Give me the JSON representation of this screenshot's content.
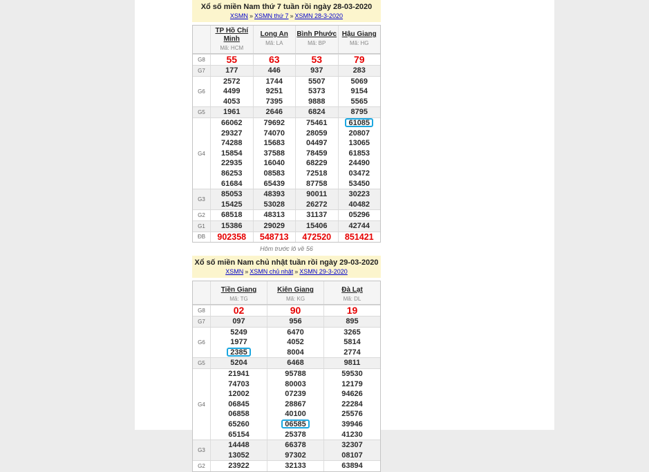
{
  "colors": {
    "page_background": "#ececec",
    "content_background": "#ffffff",
    "header_yellow": "#fcf5cd",
    "special_red": "#e60000",
    "link_blue": "#0000cc",
    "highlight_border_blue": "#1ba7e0",
    "shade_row_gray": "#f0f0f0"
  },
  "separator": "»",
  "tables": [
    {
      "title": "Xổ số miền Nam thứ 7 tuần rồi ngày 28-03-2020",
      "breadcrumb": [
        "XSMN",
        "XSMN thứ 7",
        "XSMN 28-3-2020"
      ],
      "columns": [
        {
          "name": "TP Hồ Chí Minh",
          "code": "Mã: HCM"
        },
        {
          "name": "Long An",
          "code": "Mã: LA"
        },
        {
          "name": "Bình Phước",
          "code": "Mã: BP"
        },
        {
          "name": "Hậu Giang",
          "code": "Mã: HG"
        }
      ],
      "rows": [
        {
          "label": "G8",
          "style": "g8",
          "cells": [
            [
              "55"
            ],
            [
              "63"
            ],
            [
              "53"
            ],
            [
              "79"
            ]
          ]
        },
        {
          "label": "G7",
          "cells": [
            [
              "177"
            ],
            [
              "446"
            ],
            [
              "937"
            ],
            [
              "283"
            ]
          ]
        },
        {
          "label": "G6",
          "cells": [
            [
              "2572",
              "4499",
              "4053"
            ],
            [
              "1744",
              "9251",
              "7395"
            ],
            [
              "5507",
              "5373",
              "9888"
            ],
            [
              "5069",
              "9154",
              "5565"
            ]
          ]
        },
        {
          "label": "G5",
          "cells": [
            [
              "1961"
            ],
            [
              "2646"
            ],
            [
              "6824"
            ],
            [
              "8795"
            ]
          ]
        },
        {
          "label": "G4",
          "cells": [
            [
              "66062",
              "29327",
              "74288",
              "15854",
              "22935",
              "86253",
              "61684"
            ],
            [
              "79692",
              "74070",
              "15683",
              "37588",
              "16040",
              "08583",
              "65439"
            ],
            [
              "75461",
              "28059",
              "04497",
              "78459",
              "68229",
              "72518",
              "87758"
            ],
            [
              "61085",
              "20807",
              "13065",
              "61853",
              "24490",
              "03472",
              "53450"
            ]
          ]
        },
        {
          "label": "G3",
          "cells": [
            [
              "85053",
              "15425"
            ],
            [
              "48393",
              "53028"
            ],
            [
              "90011",
              "26272"
            ],
            [
              "30223",
              "40482"
            ]
          ]
        },
        {
          "label": "G2",
          "cells": [
            [
              "68518"
            ],
            [
              "48313"
            ],
            [
              "31137"
            ],
            [
              "05296"
            ]
          ]
        },
        {
          "label": "G1",
          "cells": [
            [
              "15386"
            ],
            [
              "29029"
            ],
            [
              "15406"
            ],
            [
              "42744"
            ]
          ]
        },
        {
          "label": "ĐB",
          "style": "db",
          "cells": [
            [
              "902358"
            ],
            [
              "548713"
            ],
            [
              "472520"
            ],
            [
              "851421"
            ]
          ]
        }
      ],
      "highlights": [
        [
          4,
          3,
          0
        ]
      ],
      "note": "Hôm trước lô về 56"
    },
    {
      "title": "Xổ số miền Nam chủ nhật tuần rồi ngày 29-03-2020",
      "breadcrumb": [
        "XSMN",
        "XSMN chủ nhật",
        "XSMN 29-3-2020"
      ],
      "columns": [
        {
          "name": "Tiền Giang",
          "code": "Mã: TG"
        },
        {
          "name": "Kiên Giang",
          "code": "Mã: KG"
        },
        {
          "name": "Đà Lạt",
          "code": "Mã: DL"
        }
      ],
      "rows": [
        {
          "label": "G8",
          "style": "g8",
          "cells": [
            [
              "02"
            ],
            [
              "90"
            ],
            [
              "19"
            ]
          ]
        },
        {
          "label": "G7",
          "cells": [
            [
              "097"
            ],
            [
              "956"
            ],
            [
              "895"
            ]
          ]
        },
        {
          "label": "G6",
          "cells": [
            [
              "5249",
              "1977",
              "2385"
            ],
            [
              "6470",
              "4052",
              "8004"
            ],
            [
              "3265",
              "5814",
              "2774"
            ]
          ]
        },
        {
          "label": "G5",
          "cells": [
            [
              "5204"
            ],
            [
              "6468"
            ],
            [
              "9811"
            ]
          ]
        },
        {
          "label": "G4",
          "cells": [
            [
              "21941",
              "74703",
              "12002",
              "06845",
              "06858",
              "65260",
              "65154"
            ],
            [
              "95788",
              "80003",
              "07239",
              "28867",
              "40100",
              "06585",
              "25378"
            ],
            [
              "59530",
              "12179",
              "94626",
              "22284",
              "25576",
              "39946",
              "41230"
            ]
          ]
        },
        {
          "label": "G3",
          "cells": [
            [
              "14448",
              "13052"
            ],
            [
              "66378",
              "97302"
            ],
            [
              "32307",
              "08107"
            ]
          ]
        },
        {
          "label": "G2",
          "cells": [
            [
              "23922"
            ],
            [
              "32133"
            ],
            [
              "63894"
            ]
          ]
        }
      ],
      "highlights": [
        [
          2,
          0,
          2
        ],
        [
          4,
          1,
          5
        ]
      ]
    }
  ]
}
